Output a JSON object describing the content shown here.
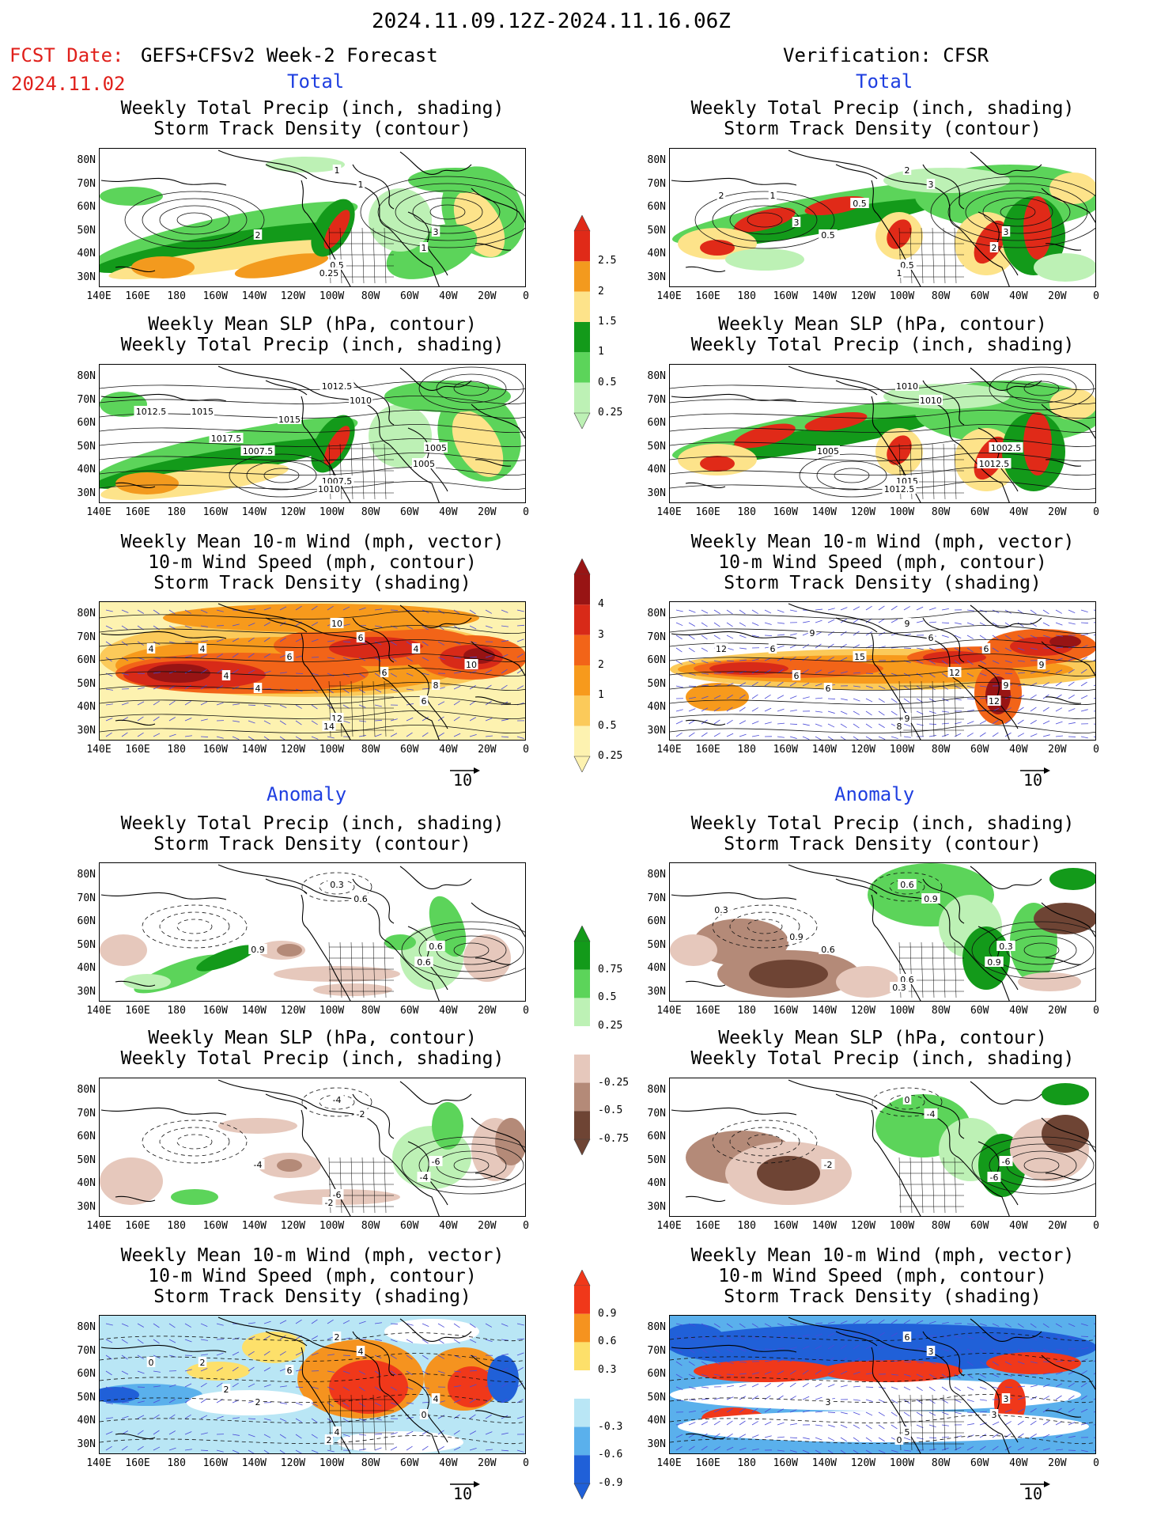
{
  "header": {
    "period": "2024.11.09.12Z-2024.11.16.06Z",
    "fcst_label": "FCST Date:",
    "fcst_model": "GEFS+CFSv2 Week-2 Forecast",
    "fcst_date": "2024.11.02",
    "verification": "Verification: CFSR"
  },
  "sections": {
    "total": "Total",
    "anomaly": "Anomaly"
  },
  "titles": {
    "precip_storm": [
      "Weekly Total Precip (inch, shading)",
      "Storm Track Density (contour)"
    ],
    "slp_precip": [
      "Weekly Mean SLP (hPa, contour)",
      "Weekly Total Precip (inch, shading)"
    ],
    "wind": [
      "Weekly Mean 10-m Wind (mph, vector)",
      "10-m Wind Speed (mph, contour)",
      "Storm Track Density (shading)"
    ]
  },
  "axes": {
    "lat": [
      "80N",
      "70N",
      "60N",
      "50N",
      "40N",
      "30N"
    ],
    "lon": [
      "140E",
      "160E",
      "180",
      "160W",
      "140W",
      "120W",
      "100W",
      "80W",
      "60W",
      "40W",
      "20W",
      "0"
    ]
  },
  "vector_ref": "10",
  "colorbars": {
    "precip_total": {
      "labels": [
        "2.5",
        "2",
        "1.5",
        "1",
        "0.5",
        "0.25"
      ],
      "colors": [
        "#e02a18",
        "#f39a1e",
        "#fde38a",
        "#139a1a",
        "#5cd45a",
        "#bdf1b5"
      ]
    },
    "storm_total": {
      "labels": [
        "4",
        "3",
        "2",
        "1",
        "0.5",
        "0.25"
      ],
      "colors": [
        "#981414",
        "#d82a18",
        "#f26418",
        "#f79a1c",
        "#fbca5a",
        "#fdf2b0"
      ]
    },
    "precip_anom": {
      "labels": [
        "0.75",
        "0.5",
        "0.25",
        "-0.25",
        "-0.5",
        "-0.75"
      ],
      "colors": [
        "#139a1a",
        "#5cd45a",
        "#bdf1b5",
        "#ffffff",
        "#e6c8bc",
        "#b48a78",
        "#6e4434"
      ]
    },
    "storm_anom": {
      "labels": [
        "0.9",
        "0.6",
        "0.3",
        "-0.3",
        "-0.6",
        "-0.9"
      ],
      "colors": [
        "#f0381a",
        "#f5931f",
        "#fde06a",
        "#ffffff",
        "#b9e6f5",
        "#5ab0ec",
        "#2060d8"
      ]
    }
  },
  "contour_labels": {
    "fc_storm": [
      "1",
      "1",
      "2",
      "3",
      "1",
      "0.5",
      "0.25"
    ],
    "ob_storm": [
      "2",
      "3",
      "0.5",
      "3",
      "2",
      "0.5",
      "1",
      "3",
      "2",
      "0.5",
      "1"
    ],
    "fc_slp": [
      "1012.5",
      "1010",
      "1007.5",
      "1005",
      "1005",
      "1007.5",
      "1010",
      "1017.5",
      "1012.5",
      "1015",
      "1015"
    ],
    "ob_slp": [
      "1010",
      "1010",
      "1005",
      "1002.5",
      "1012.5",
      "1015",
      "1012.5"
    ],
    "fc_wind": [
      "10",
      "6",
      "4",
      "8",
      "6",
      "12",
      "14",
      "4",
      "4",
      "6",
      "4",
      "10",
      "6",
      "4"
    ],
    "ob_wind": [
      "9",
      "6",
      "6",
      "9",
      "12",
      "9",
      "8",
      "6",
      "12",
      "15",
      "6",
      "9",
      "12",
      "6",
      "9"
    ],
    "fc_pa": [
      "0.3",
      "0.6",
      "0.9",
      "0.6",
      "0.6"
    ],
    "ob_pa": [
      "0.6",
      "0.9",
      "0.6",
      "0.3",
      "0.9",
      "0.6",
      "0.3",
      "0.9",
      "0.3"
    ],
    "fc_sa": [
      "-4",
      "-2",
      "-4",
      "-6",
      "-4",
      "-6",
      "-2"
    ],
    "ob_sa": [
      "0",
      "-4",
      "-2",
      "-6",
      "-6"
    ],
    "fc_wa": [
      "2",
      "4",
      "2",
      "4",
      "0",
      "4",
      "2",
      "2",
      "0",
      "6",
      "2"
    ],
    "ob_wa": [
      "6",
      "3",
      "3",
      "3",
      "3",
      "5",
      "0"
    ]
  }
}
